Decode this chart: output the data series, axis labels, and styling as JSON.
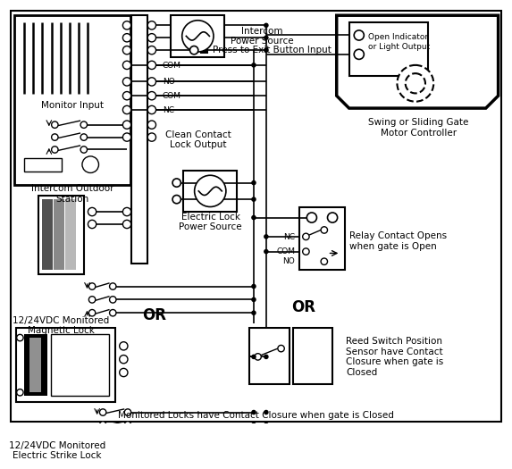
{
  "bg": "#ffffff",
  "texts": {
    "intercom_ps": "Intercom\nPower Source",
    "press_exit": "Press to Exit Button Input",
    "clean_contact": "Clean Contact\nLock Output",
    "elec_lock_ps": "Electric Lock\nPower Source",
    "monitor_input": "Monitor Input",
    "intercom_outdoor": "Intercom Outdoor\nStation",
    "mag_lock": "12/24VDC Monitored\nMagnetic Lock",
    "elec_strike": "12/24VDC Monitored\nElectric Strike Lock",
    "swing_gate": "Swing or Sliding Gate\nMotor Controller",
    "open_indicator": "Open Indicator\nor Light Output",
    "relay_contact": "Relay Contact Opens\nwhen gate is Open",
    "reed_switch": "Reed Switch Position\nSensor have Contact\nClosure when gate is\nClosed",
    "monitored_locks": "Monitored Locks have Contact Closure when gate is Closed",
    "OR": "OR",
    "NC": "NC",
    "COM": "COM",
    "NO": "NO"
  }
}
